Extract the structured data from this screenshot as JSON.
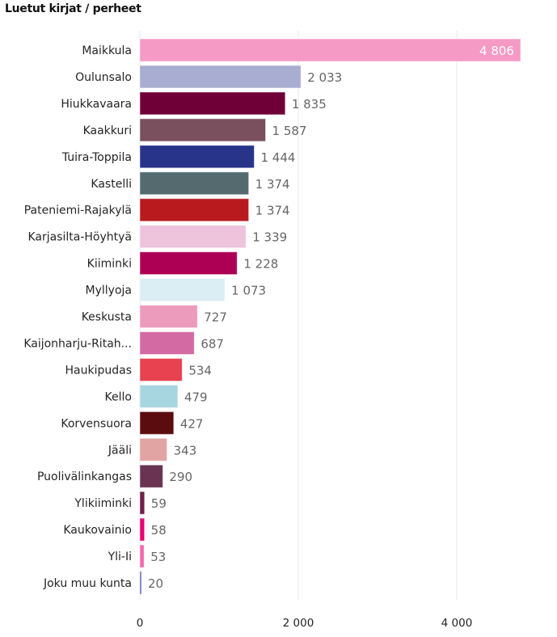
{
  "chart_data": {
    "type": "bar",
    "orientation": "horizontal",
    "title": "Luetut kirjat / perheet",
    "categories": [
      "Maikkula",
      "Oulunsalo",
      "Hiukkavaara",
      "Kaakkuri",
      "Tuira-Toppila",
      "Kastelli",
      "Pateniemi-Rajakylä",
      "Karjasilta-Höyhtyä",
      "Kiiminki",
      "Myllyoja",
      "Keskusta",
      "Kaijonharju-Ritah...",
      "Haukipudas",
      "Kello",
      "Korvensuora",
      "Jääli",
      "Puolivälinkangas",
      "Ylikiiminki",
      "Kaukovainio",
      "Yli-Ii",
      "Joku muu kunta"
    ],
    "values": [
      4806,
      2033,
      1835,
      1587,
      1444,
      1374,
      1374,
      1339,
      1228,
      1073,
      727,
      687,
      534,
      479,
      427,
      343,
      290,
      59,
      58,
      53,
      20
    ],
    "value_labels": [
      "4 806",
      "2 033",
      "1 835",
      "1 587",
      "1 444",
      "1 374",
      "1 374",
      "1 339",
      "1 228",
      "1 073",
      "727",
      "687",
      "534",
      "479",
      "427",
      "343",
      "290",
      "59",
      "58",
      "53",
      "20"
    ],
    "colors": [
      "#F49AC5",
      "#A9ADD1",
      "#6E0037",
      "#7A4F5E",
      "#28348A",
      "#546A6E",
      "#B81A1E",
      "#EEC3DC",
      "#AD0055",
      "#DAEEF3",
      "#EC9BBC",
      "#D36AA3",
      "#E8414F",
      "#A8D6E0",
      "#5A0C0E",
      "#E2A3A3",
      "#6A3352",
      "#6E1E44",
      "#E8006E",
      "#F06AAE",
      "#5E6AB4"
    ],
    "xticks": [
      0,
      2000,
      4000
    ],
    "xtick_labels": [
      "0",
      "2 000",
      "4 000"
    ],
    "xlim": [
      0,
      4900
    ],
    "grid": true,
    "xlabel": "",
    "ylabel": ""
  }
}
